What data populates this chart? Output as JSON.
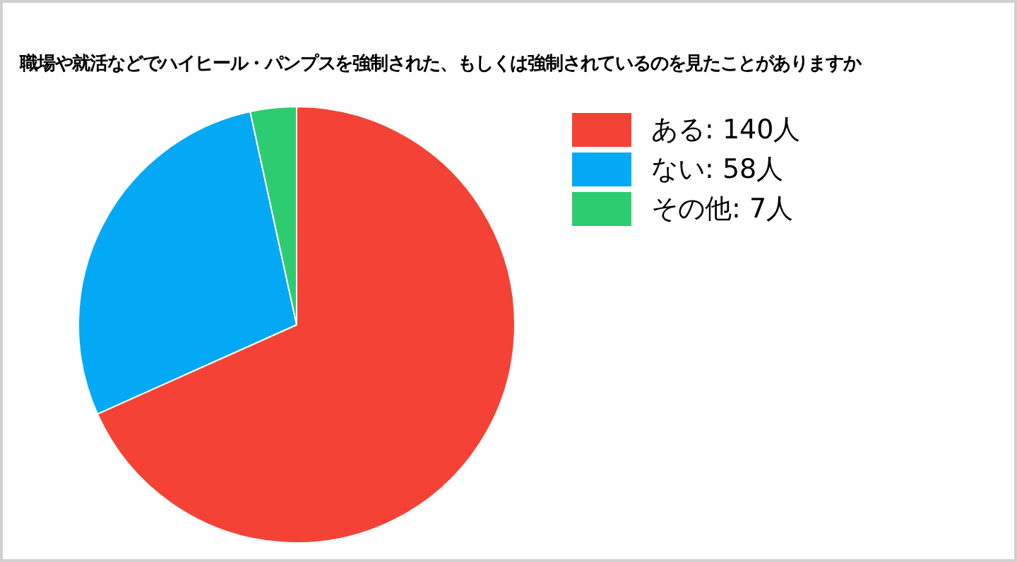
{
  "chart_data": {
    "type": "pie",
    "title": "職場や就活などでハイヒール・パンプスを強制された、もしくは強制されているのを見たことがありますか",
    "categories": [
      "ある: 140人",
      "ない: 58人",
      "その他: 7人"
    ],
    "values": [
      140,
      58,
      7
    ],
    "colors": [
      "#f44336",
      "#03a9f4",
      "#2ecc71"
    ],
    "legend": "top right"
  }
}
